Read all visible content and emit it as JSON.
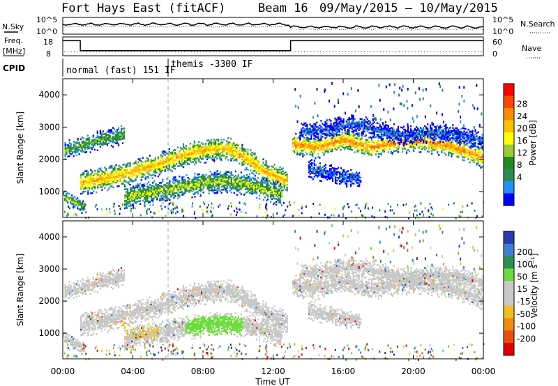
{
  "chart_data": [
    {
      "type": "line",
      "title": "Fort Hays East (fitACF)",
      "beam": "Beam 16",
      "date_range": "09/May/2015 – 10/May/2015",
      "panel": "noise_and_frequency",
      "left_labels": {
        "nsky": "N.Sky",
        "freq": "Freq.",
        "freq_unit": "[MHz]",
        "cpid": "CPID"
      },
      "right_labels": {
        "nsearch": "N.Search",
        "nave": "Nave"
      },
      "noise_ticks": [
        "10^5",
        "10^0"
      ],
      "noise_right_ticks": [
        "10^5",
        "10^0"
      ],
      "freq_ticks": [
        "18",
        "8"
      ],
      "nave_ticks": [
        "60",
        "0"
      ],
      "frequency_steps": [
        {
          "from": 0.0,
          "to": 1.0,
          "value": 17
        },
        {
          "from": 1.0,
          "to": 13.0,
          "value": 11
        },
        {
          "from": 13.0,
          "to": 24.0,
          "value": 17
        }
      ],
      "cpid_segments": [
        {
          "start": 0.0,
          "end": 6.0,
          "label": "normal (fast) 151 IF"
        },
        {
          "start": 6.0,
          "end": 24.0,
          "label": "themis -3300 IF"
        }
      ]
    },
    {
      "type": "heatmap",
      "panel": "power",
      "ylabel": "Slant Range [km]",
      "ylim": [
        200,
        4500
      ],
      "yticks": [
        1000,
        2000,
        3000,
        4000
      ],
      "colorbar_label": "Power [dB]",
      "colorbar_ticks": [
        "28",
        "24",
        "20",
        "16",
        "12",
        "8",
        "4"
      ],
      "colorbar_colors": [
        "#ff0000",
        "#ff4500",
        "#ff8c00",
        "#ffc000",
        "#ffff00",
        "#9acd32",
        "#228b22",
        "#2e8b57",
        "#1e90ff",
        "#0000ff"
      ],
      "bands": [
        {
          "t": [
            0.1,
            1.2,
            2.2,
            3.5
          ],
          "r": [
            2250,
            2450,
            2600,
            2750
          ],
          "w": 300,
          "p": 12
        },
        {
          "t": [
            1.0,
            2.5,
            4.0,
            5.5,
            7.0,
            8.5,
            9.5,
            10.5,
            11.5,
            12.8
          ],
          "r": [
            1250,
            1400,
            1600,
            1850,
            2150,
            2300,
            2300,
            2000,
            1600,
            1300
          ],
          "w": 380,
          "p": 20
        },
        {
          "t": [
            3.5,
            5.0,
            6.5,
            8.0,
            9.5,
            10.5,
            11.5,
            12.5
          ],
          "r": [
            800,
            950,
            1100,
            1250,
            1300,
            1200,
            1050,
            900
          ],
          "w": 380,
          "p": 14
        },
        {
          "t": [
            0.0,
            0.5,
            1.2
          ],
          "r": [
            850,
            700,
            500
          ],
          "w": 200,
          "p": 14
        },
        {
          "t": [
            13.1,
            14.5,
            16.0,
            17.5,
            19.0,
            20.5,
            22.0,
            23.9
          ],
          "r": [
            2450,
            2350,
            2600,
            2350,
            2500,
            2550,
            2400,
            2050
          ],
          "w": 340,
          "p": 22
        },
        {
          "t": [
            13.5,
            15.0,
            16.5,
            18.0,
            19.5,
            21.0,
            22.5,
            23.9
          ],
          "r": [
            2850,
            2900,
            3100,
            2900,
            2700,
            2800,
            2750,
            2550
          ],
          "w": 300,
          "p": 6
        },
        {
          "t": [
            14.0,
            15.5,
            17.0
          ],
          "r": [
            1700,
            1500,
            1350
          ],
          "w": 300,
          "p": 6
        }
      ]
    },
    {
      "type": "heatmap",
      "panel": "velocity",
      "xlabel": "Time UT",
      "ylabel": "Slant Range [km]",
      "ylim": [
        200,
        4500
      ],
      "yticks": [
        1000,
        2000,
        3000,
        4000
      ],
      "xticks": [
        "00:00",
        "04:00",
        "08:00",
        "12:00",
        "16:00",
        "20:00",
        "00:00"
      ],
      "colorbar_label": "Velocity [m s⁻¹]",
      "colorbar_ticks": [
        "200",
        "100",
        "50",
        "15",
        "-15",
        "-50",
        "-100",
        "-200"
      ],
      "colorbar_colors": [
        "#2a3ab0",
        "#3f80d0",
        "#2d8f57",
        "#6cdc3a",
        "#c8c8c8",
        "#c8c8c8",
        "#f0c020",
        "#f08c10",
        "#e85010",
        "#e00000"
      ],
      "gs_regions": [
        {
          "t": [
            7.0,
            10.3
          ],
          "r": [
            900,
            1500
          ],
          "label": "ground scatter (green)"
        }
      ]
    }
  ]
}
